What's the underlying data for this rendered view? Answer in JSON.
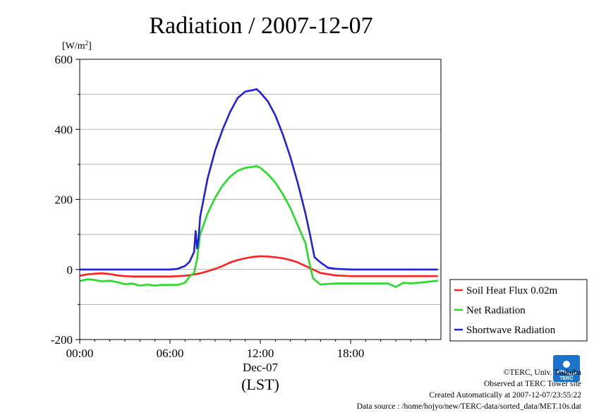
{
  "chart_data": {
    "type": "line",
    "title": "Radiation / 2007-12-07",
    "y_unit": "[W/m",
    "y_unit_sup": "2",
    "y_unit_close": "]",
    "ylim": [
      -200,
      600
    ],
    "yticks": [
      -200,
      0,
      200,
      400,
      600
    ],
    "ytick_labels": [
      "-200",
      "0",
      "200",
      "400",
      "600"
    ],
    "xlim": [
      0,
      24
    ],
    "xticks": [
      0,
      6,
      12,
      18
    ],
    "xtick_labels": [
      "00:00",
      "06:00",
      "12:00",
      "18:00"
    ],
    "x_date_label": "Dec-07",
    "x_unit": "(LST)",
    "grid": true,
    "legend_position": "right, outside plot",
    "series": [
      {
        "name": "Soil Heat Flux 0.02m",
        "color": "#ff2020",
        "x": [
          0,
          0.5,
          1,
          1.5,
          2,
          2.5,
          3,
          3.5,
          4,
          5,
          6,
          7,
          7.5,
          8,
          8.5,
          9,
          9.5,
          10,
          10.5,
          11,
          11.5,
          12,
          12.5,
          13,
          13.5,
          14,
          14.5,
          15,
          15.5,
          16,
          17,
          18,
          19,
          20,
          21,
          22,
          23,
          23.8
        ],
        "y": [
          -18,
          -14,
          -12,
          -11,
          -13,
          -17,
          -19,
          -20,
          -20,
          -20,
          -20,
          -18,
          -15,
          -11,
          -5,
          2,
          10,
          20,
          27,
          32,
          36,
          38,
          37,
          35,
          32,
          27,
          20,
          10,
          0,
          -10,
          -17,
          -19,
          -19,
          -19,
          -19,
          -19,
          -19,
          -19
        ]
      },
      {
        "name": "Net Radiation",
        "color": "#22dd22",
        "x": [
          0,
          0.5,
          1,
          1.5,
          2,
          2.5,
          3,
          3.5,
          4,
          4.5,
          5,
          5.5,
          6,
          6.5,
          7,
          7.3,
          7.6,
          7.8,
          8,
          8.5,
          9,
          9.5,
          10,
          10.5,
          11,
          11.5,
          11.75,
          12,
          12.5,
          13,
          13.5,
          14,
          14.5,
          15,
          15.2,
          15.5,
          16,
          17,
          18,
          19,
          20,
          20.5,
          21,
          21.5,
          22,
          23,
          23.8
        ],
        "y": [
          -33,
          -28,
          -30,
          -34,
          -32,
          -36,
          -42,
          -40,
          -46,
          -43,
          -46,
          -44,
          -44,
          -44,
          -38,
          -20,
          -10,
          30,
          100,
          160,
          205,
          240,
          265,
          282,
          290,
          293,
          295,
          290,
          272,
          248,
          215,
          175,
          125,
          75,
          30,
          -25,
          -43,
          -40,
          -40,
          -40,
          -40,
          -40,
          -50,
          -38,
          -40,
          -36,
          -32
        ]
      },
      {
        "name": "Shortwave Radiation",
        "color": "#2020e0",
        "x": [
          0,
          1,
          2,
          3,
          4,
          5,
          6,
          6.5,
          7,
          7.3,
          7.6,
          7.7,
          7.8,
          7.9,
          8,
          8.5,
          9,
          9.5,
          10,
          10.5,
          11,
          11.5,
          11.75,
          12,
          12.5,
          13,
          13.5,
          14,
          14.5,
          15,
          15.3,
          15.6,
          16,
          16.5,
          17,
          18,
          19,
          20,
          21,
          22,
          23,
          23.8
        ],
        "y": [
          0,
          0,
          0,
          0,
          0,
          0,
          0,
          2,
          10,
          22,
          50,
          110,
          60,
          90,
          150,
          260,
          340,
          400,
          450,
          490,
          508,
          512,
          515,
          505,
          480,
          440,
          385,
          320,
          245,
          160,
          100,
          35,
          20,
          5,
          2,
          0,
          0,
          0,
          0,
          0,
          0,
          0
        ]
      }
    ]
  },
  "credits": {
    "copyright": "©TERC, Univ. Tsukuba",
    "site": "Observed at TERC Tower site",
    "created": "Created Automatically at 2007-12-07/23:55:22",
    "source": "Data source : /home/hojyo/new/TERC-data/sorted_data/MET.10s.dat"
  },
  "logo": {
    "label": "TERC",
    "color": "#1a73c8"
  }
}
